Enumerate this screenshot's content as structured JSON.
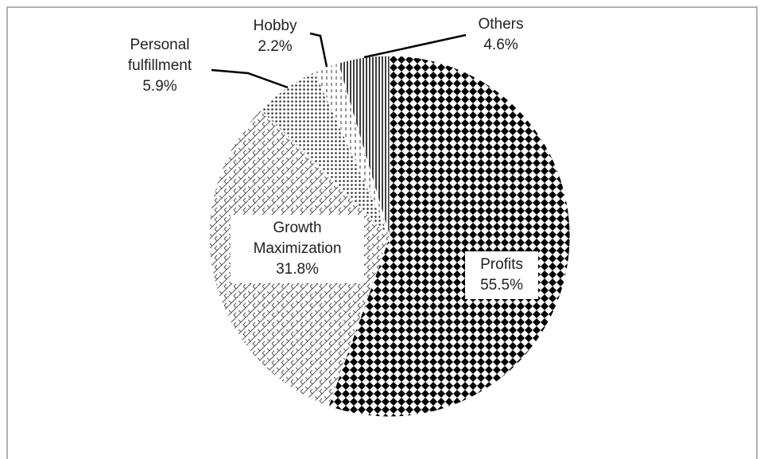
{
  "chart_data": {
    "type": "pie",
    "categories": [
      "Profits",
      "Growth Maximization",
      "Personal fulfillment",
      "Hobby",
      "Others"
    ],
    "values": [
      55.5,
      31.8,
      5.9,
      2.2,
      4.6
    ],
    "value_labels": [
      "55.5%",
      "31.8%",
      "5.9%",
      "2.2%",
      "4.6%"
    ]
  }
}
